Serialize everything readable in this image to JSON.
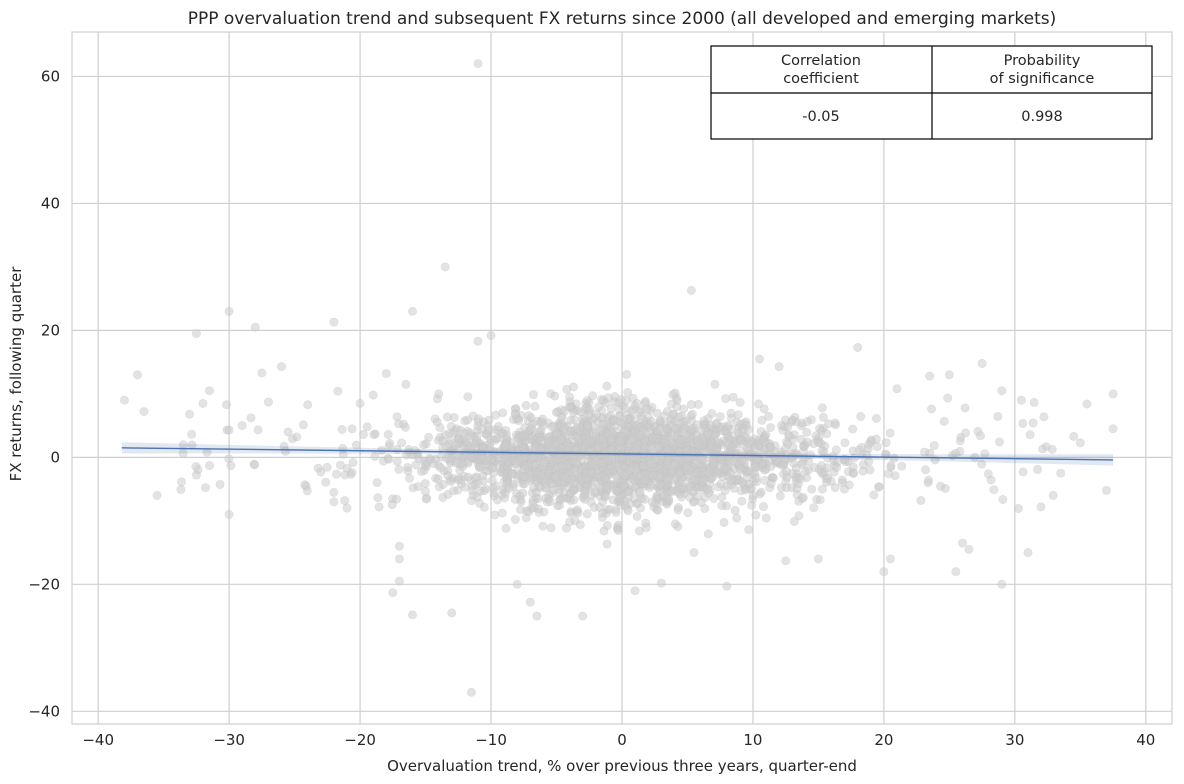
{
  "chart_data": {
    "type": "scatter",
    "title": "PPP overvaluation trend and subsequent FX returns since 2000 (all developed and emerging markets)",
    "xlabel": "Overvaluation trend, % over previous three years, quarter-end",
    "ylabel": "FX returns, following quarter",
    "xlim": [
      -42,
      42
    ],
    "ylim": [
      -42,
      67
    ],
    "xticks": [
      -40,
      -30,
      -20,
      -10,
      0,
      10,
      20,
      30,
      40
    ],
    "yticks": [
      -40,
      -20,
      0,
      20,
      40,
      60
    ],
    "grid": true,
    "point_color": "#cccccc",
    "line_color": "#4c72b0",
    "regression": {
      "x": [
        -38.2,
        37.5
      ],
      "y": [
        1.5,
        -0.4
      ],
      "ci": 0.9
    },
    "stats_table": {
      "headers": [
        "Correlation\ncoefficient",
        "Probability\nof significance"
      ],
      "values": [
        "-0.05",
        "0.998"
      ]
    },
    "outliers": [
      [
        -11,
        62
      ],
      [
        -13.5,
        30
      ],
      [
        5.3,
        26.3
      ],
      [
        -30,
        23
      ],
      [
        -16,
        23
      ],
      [
        -28,
        20.5
      ],
      [
        -32.5,
        19.5
      ],
      [
        -22,
        21.3
      ],
      [
        -10,
        19.2
      ],
      [
        -11,
        18.3
      ],
      [
        18,
        17.3
      ],
      [
        -37,
        13
      ],
      [
        -38,
        9
      ],
      [
        -36.5,
        7.2
      ],
      [
        -31.5,
        10.5
      ],
      [
        -32,
        8.5
      ],
      [
        -30.2,
        8.3
      ],
      [
        -27.5,
        13.3
      ],
      [
        -26,
        14.3
      ],
      [
        -25.5,
        4
      ],
      [
        -30,
        4.3
      ],
      [
        -32.5,
        -2.8
      ],
      [
        -31.5,
        -1.3
      ],
      [
        -35.5,
        -6
      ],
      [
        -30,
        -9
      ],
      [
        -23,
        -2.3
      ],
      [
        -22,
        -7
      ],
      [
        -21,
        -8
      ],
      [
        -17,
        -14
      ],
      [
        -17,
        -16
      ],
      [
        -17,
        -19.5
      ],
      [
        -17.5,
        -21.3
      ],
      [
        -16,
        -24.8
      ],
      [
        -13,
        -24.5
      ],
      [
        -11.5,
        -37
      ],
      [
        -8,
        -20
      ],
      [
        -7,
        -22.8
      ],
      [
        -6.5,
        -25
      ],
      [
        -3,
        -25
      ],
      [
        1,
        -21
      ],
      [
        3,
        -19.8
      ],
      [
        8,
        -20.3
      ],
      [
        5.5,
        -15
      ],
      [
        12.5,
        -16.3
      ],
      [
        15,
        -16
      ],
      [
        20,
        -18
      ],
      [
        20.5,
        -16
      ],
      [
        25.5,
        -18
      ],
      [
        26,
        -13.5
      ],
      [
        26.5,
        -14.5
      ],
      [
        29,
        -20
      ],
      [
        31,
        -15
      ],
      [
        32,
        -7.8
      ],
      [
        35.5,
        8.4
      ],
      [
        37.5,
        10
      ],
      [
        37.5,
        4.5
      ],
      [
        37,
        -5.2
      ],
      [
        34.5,
        3.3
      ],
      [
        33.5,
        -2.5
      ],
      [
        35,
        2.3
      ],
      [
        27.5,
        14.8
      ],
      [
        29,
        10.5
      ],
      [
        30.5,
        9
      ],
      [
        25,
        13
      ],
      [
        21,
        10.8
      ],
      [
        23.5,
        12.8
      ],
      [
        12,
        14.3
      ],
      [
        10.5,
        15.5
      ],
      [
        -14,
        10
      ],
      [
        -18,
        13.2
      ],
      [
        -16.5,
        11.5
      ],
      [
        -19,
        9.8
      ],
      [
        -20,
        8.5
      ],
      [
        -24,
        8.3
      ],
      [
        -27,
        8.7
      ],
      [
        -29,
        5
      ],
      [
        -33.5,
        2
      ]
    ],
    "cloud": {
      "count": 2300,
      "seed": 7,
      "x_center": 0,
      "x_sd": 7.5,
      "x_range": [
        -23,
        31
      ],
      "y_sd": 4.3
    }
  }
}
